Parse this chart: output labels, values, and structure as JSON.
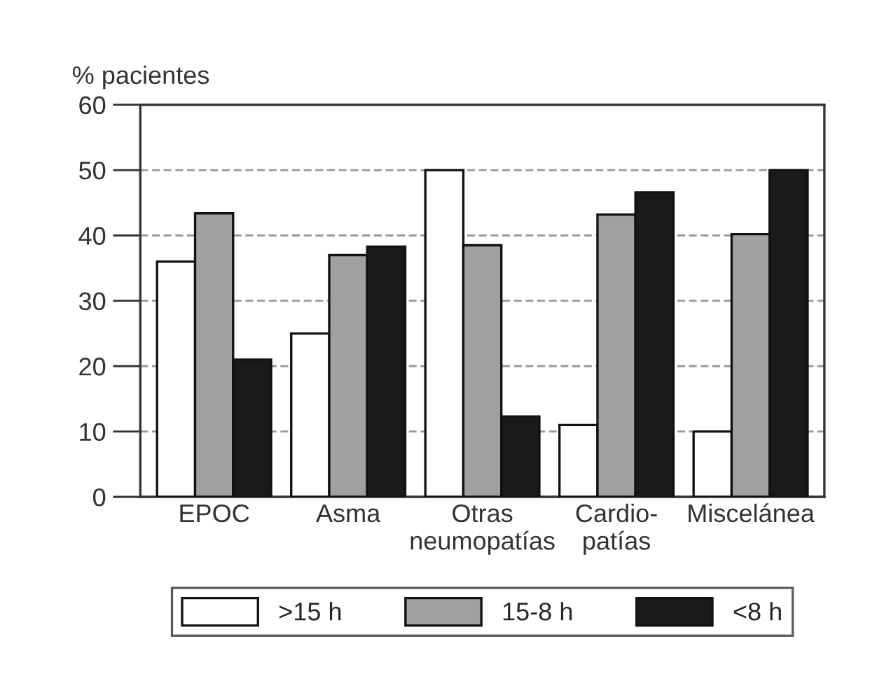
{
  "chart_data": {
    "type": "bar",
    "ylabel": "% pacientes",
    "categories": [
      "EPOC",
      "Asma",
      "Otras\nneumopatías",
      "Cardio-\npatías",
      "Miscelánea"
    ],
    "series": [
      {
        "name": ">15 h",
        "color": "#ffffff",
        "values": [
          36,
          25,
          50,
          11,
          10
        ]
      },
      {
        "name": "15-8 h",
        "color": "#a0a0a0",
        "values": [
          43.4,
          37,
          38.5,
          43.2,
          40.2
        ]
      },
      {
        "name": "<8 h",
        "color": "#1a1a1a",
        "values": [
          21,
          38.3,
          12.3,
          46.6,
          50
        ]
      }
    ],
    "ylim": [
      0,
      60
    ],
    "yticks": [
      0,
      10,
      20,
      30,
      40,
      50,
      60
    ],
    "grid": "y",
    "legend": "bottom"
  }
}
